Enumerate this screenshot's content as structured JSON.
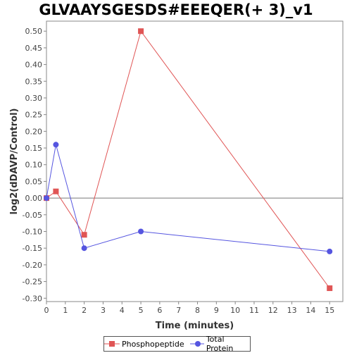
{
  "chart_data": {
    "type": "line",
    "title": "GLVAAYSGESDS#EEEQER(+ 3)_v1",
    "xlabel": "Time (minutes)",
    "ylabel": "log2(dDAVP/Control)",
    "xlim": [
      0,
      15.7
    ],
    "ylim": [
      -0.31,
      0.53
    ],
    "x_ticks": [
      0,
      1,
      2,
      3,
      4,
      5,
      6,
      7,
      8,
      9,
      10,
      11,
      12,
      13,
      14,
      15
    ],
    "y_ticks": [
      -0.3,
      -0.25,
      -0.2,
      -0.15,
      -0.1,
      -0.05,
      0.0,
      0.05,
      0.1,
      0.15,
      0.2,
      0.25,
      0.3,
      0.35,
      0.4,
      0.45,
      0.5
    ],
    "zero_line": true,
    "grid": false,
    "legend_position": "bottom",
    "series": [
      {
        "name": "Phosphopeptide",
        "color": "#e05555",
        "marker": "square",
        "x": [
          0,
          0.5,
          2,
          5,
          15
        ],
        "y": [
          0.0,
          0.02,
          -0.11,
          0.5,
          -0.27
        ]
      },
      {
        "name": "Total Protein",
        "color": "#5555e0",
        "marker": "circle",
        "x": [
          0,
          0.5,
          2,
          5,
          15
        ],
        "y": [
          0.0,
          0.16,
          -0.15,
          -0.1,
          -0.16
        ]
      }
    ]
  }
}
